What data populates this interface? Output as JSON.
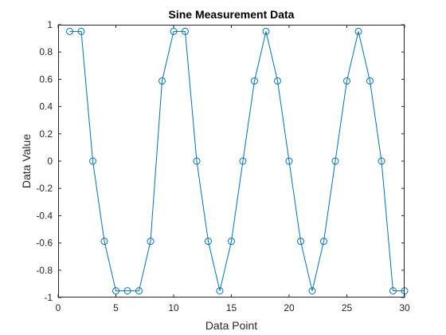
{
  "chart_data": {
    "type": "line",
    "title": "Sine Measurement Data",
    "xlabel": "Data Point",
    "ylabel": "Data Value",
    "xlim": [
      0,
      30
    ],
    "ylim": [
      -1,
      1
    ],
    "xticks": [
      0,
      5,
      10,
      15,
      20,
      25,
      30
    ],
    "xtick_labels": [
      "0",
      "5",
      "10",
      "15",
      "20",
      "25",
      "30"
    ],
    "yticks": [
      -1,
      -0.8,
      -0.6,
      -0.4,
      -0.2,
      0,
      0.2,
      0.4,
      0.6,
      0.8,
      1
    ],
    "ytick_labels": [
      "-1",
      "-0.8",
      "-0.6",
      "-0.4",
      "-0.2",
      "0",
      "0.2",
      "0.4",
      "0.6",
      "0.8",
      "1"
    ],
    "grid": false,
    "marker": "circle",
    "color": "#0072BD",
    "series": [
      {
        "x": [
          1,
          2,
          3,
          4,
          5,
          6,
          7,
          8,
          9,
          10,
          11,
          12,
          13,
          14,
          15,
          16,
          17,
          18,
          19,
          20,
          21,
          22,
          23,
          24,
          25,
          26,
          27,
          28,
          29,
          30
        ],
        "values": [
          0.951,
          0.951,
          0,
          -0.588,
          -0.951,
          -0.951,
          -0.951,
          -0.588,
          0.588,
          0.951,
          0.951,
          0,
          -0.588,
          -0.951,
          -0.588,
          0,
          0.588,
          0.951,
          0.588,
          0,
          -0.588,
          -0.951,
          -0.588,
          0,
          0.588,
          0.951,
          0.588,
          0,
          -0.951,
          -0.951
        ]
      }
    ]
  }
}
